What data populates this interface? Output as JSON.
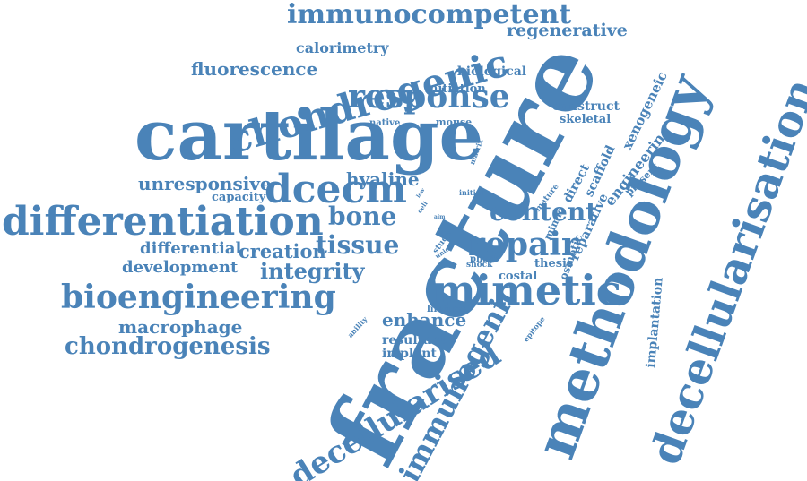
{
  "cloud": {
    "color": "#4a83b8",
    "words": [
      "fracture",
      "cartilage",
      "methodology",
      "decellularisation",
      "differentiation",
      "chondrogenic",
      "mimetic",
      "dcecm",
      "bioengineering",
      "response",
      "repair",
      "decellularised",
      "immunogenic",
      "immunocompetent",
      "content",
      "chondrogenesis",
      "tissue",
      "integrity",
      "bone",
      "macrophage",
      "development",
      "creation",
      "differential",
      "unresponsive",
      "fluorescence",
      "hyaline",
      "enhance",
      "regenerative",
      "calorimetry",
      "biological",
      "construct",
      "implantation",
      "resultant",
      "implant",
      "capacity",
      "initiation",
      "native",
      "mouse",
      "skeletal",
      "xenogeneic",
      "engineering",
      "scaffold",
      "direct",
      "mature",
      "reparative",
      "present",
      "thesis",
      "costal",
      "osmotic",
      "phase",
      "shock",
      "lifetime",
      "epitope",
      "ability",
      "initial",
      "cell",
      "aim",
      "film",
      "study",
      "union",
      "mimic",
      "matrix",
      "low"
    ]
  }
}
